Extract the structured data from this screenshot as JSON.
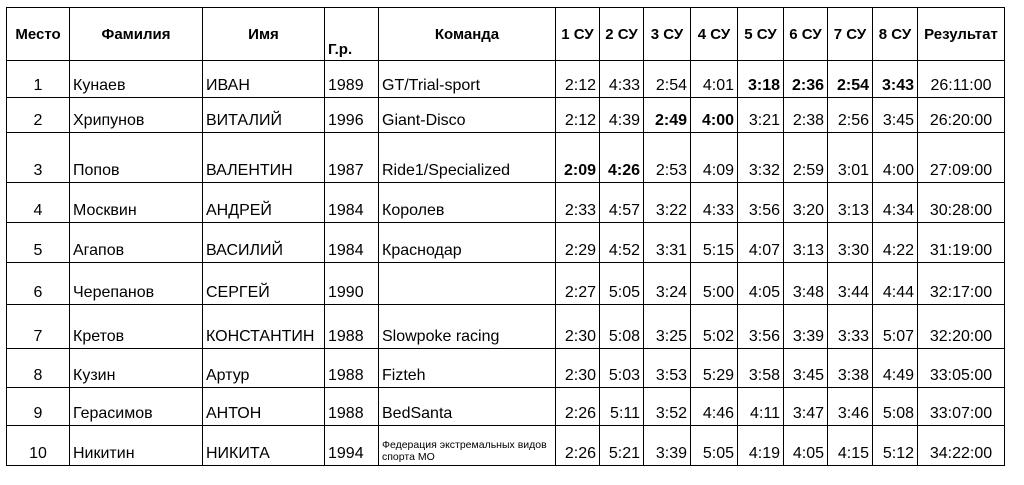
{
  "headers": {
    "place": "Место",
    "surname": "Фамилия",
    "name": "Имя",
    "year": "Г.р.",
    "team": "Команда",
    "stages": [
      "1 СУ",
      "2 СУ",
      "3 СУ",
      "4 СУ",
      "5 СУ",
      "6 СУ",
      "7 СУ",
      "8 СУ"
    ],
    "result": "Результат"
  },
  "rows": [
    {
      "place": "1",
      "surname": "Кунаев",
      "name": "ИВАН",
      "year": "1989",
      "team": "GT/Trial-sport",
      "times": [
        "2:12",
        "4:33",
        "2:54",
        "4:01",
        "3:18",
        "2:36",
        "2:54",
        "3:43"
      ],
      "bold": [
        false,
        false,
        false,
        false,
        true,
        true,
        true,
        true
      ],
      "result": "26:11:00"
    },
    {
      "place": "2",
      "surname": "Хрипунов",
      "name": "ВИТАЛИЙ",
      "year": "1996",
      "team": "Giant-Disco",
      "times": [
        "2:12",
        "4:39",
        "2:49",
        "4:00",
        "3:21",
        "2:38",
        "2:56",
        "3:45"
      ],
      "bold": [
        false,
        false,
        true,
        true,
        false,
        false,
        false,
        false
      ],
      "result": "26:20:00"
    },
    {
      "place": "3",
      "surname": "Попов",
      "name": "ВАЛЕНТИН",
      "year": "1987",
      "team": "Ride1/Specialized",
      "times": [
        "2:09",
        "4:26",
        "2:53",
        "4:09",
        "3:32",
        "2:59",
        "3:01",
        "4:00"
      ],
      "bold": [
        true,
        true,
        false,
        false,
        false,
        false,
        false,
        false
      ],
      "result": "27:09:00"
    },
    {
      "place": "4",
      "surname": "Москвин",
      "name": "АНДРЕЙ",
      "year": "1984",
      "team": "Королев",
      "times": [
        "2:33",
        "4:57",
        "3:22",
        "4:33",
        "3:56",
        "3:20",
        "3:13",
        "4:34"
      ],
      "bold": [
        false,
        false,
        false,
        false,
        false,
        false,
        false,
        false
      ],
      "result": "30:28:00"
    },
    {
      "place": "5",
      "surname": "Агапов",
      "name": "ВАСИЛИЙ",
      "year": "1984",
      "team": "Краснодар",
      "times": [
        "2:29",
        "4:52",
        "3:31",
        "5:15",
        "4:07",
        "3:13",
        "3:30",
        "4:22"
      ],
      "bold": [
        false,
        false,
        false,
        false,
        false,
        false,
        false,
        false
      ],
      "result": "31:19:00"
    },
    {
      "place": "6",
      "surname": "Черепанов",
      "name": "СЕРГЕЙ",
      "year": "1990",
      "team": "",
      "times": [
        "2:27",
        "5:05",
        "3:24",
        "5:00",
        "4:05",
        "3:48",
        "3:44",
        "4:44"
      ],
      "bold": [
        false,
        false,
        false,
        false,
        false,
        false,
        false,
        false
      ],
      "result": "32:17:00"
    },
    {
      "place": "7",
      "surname": "Кретов",
      "name": "КОНСТАНТИН",
      "year": "1988",
      "team": "Slowpoke racing",
      "times": [
        "2:30",
        "5:08",
        "3:25",
        "5:02",
        "3:56",
        "3:39",
        "3:33",
        "5:07"
      ],
      "bold": [
        false,
        false,
        false,
        false,
        false,
        false,
        false,
        false
      ],
      "result": "32:20:00"
    },
    {
      "place": "8",
      "surname": "Кузин",
      "name": "Артур",
      "year": "1988",
      "team": "Fizteh",
      "times": [
        "2:30",
        "5:03",
        "3:53",
        "5:29",
        "3:58",
        "3:45",
        "3:38",
        "4:49"
      ],
      "bold": [
        false,
        false,
        false,
        false,
        false,
        false,
        false,
        false
      ],
      "result": "33:05:00"
    },
    {
      "place": "9",
      "surname": "Герасимов",
      "name": "АНТОН",
      "year": "1988",
      "team": "BedSanta",
      "times": [
        "2:26",
        "5:11",
        "3:52",
        "4:46",
        "4:11",
        "3:47",
        "3:46",
        "5:08"
      ],
      "bold": [
        false,
        false,
        false,
        false,
        false,
        false,
        false,
        false
      ],
      "result": "33:07:00"
    },
    {
      "place": "10",
      "surname": "Никитин",
      "name": "НИКИТА",
      "year": "1994",
      "team": "Федерация экстремальных видов спорта МО",
      "times": [
        "2:26",
        "5:21",
        "3:39",
        "5:05",
        "4:19",
        "4:05",
        "4:15",
        "5:12"
      ],
      "bold": [
        false,
        false,
        false,
        false,
        false,
        false,
        false,
        false
      ],
      "result": "34:22:00",
      "team_small": true
    }
  ]
}
